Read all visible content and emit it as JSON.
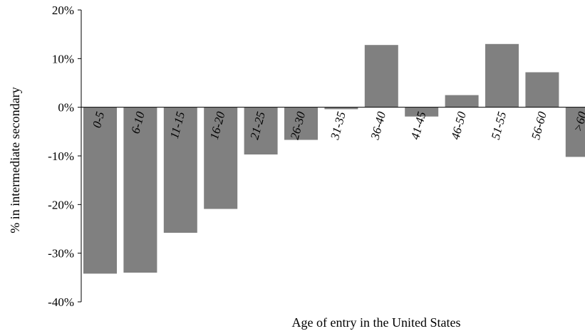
{
  "chart_data": {
    "type": "bar",
    "xlabel": "Age of entry in the United States",
    "ylabel": "% in intermediate secondary",
    "ylim": [
      -40,
      20
    ],
    "yticks": [
      {
        "value": 20,
        "label": "20%"
      },
      {
        "value": 10,
        "label": "10%"
      },
      {
        "value": 0,
        "label": "0%"
      },
      {
        "value": -10,
        "label": "-10%"
      },
      {
        "value": -20,
        "label": "-20%"
      },
      {
        "value": -30,
        "label": "-30%"
      },
      {
        "value": -40,
        "label": "-40%"
      }
    ],
    "categories": [
      "0-5",
      "6-10",
      "11-15",
      "16-20",
      "21-25",
      "26-30",
      "31-35",
      "36-40",
      "41-45",
      "46-50",
      "51-55",
      "56-60",
      ">60"
    ],
    "values": [
      -34.2,
      -34.0,
      -25.8,
      -20.9,
      -9.7,
      -6.7,
      -0.4,
      12.8,
      -1.9,
      2.5,
      13.0,
      7.2,
      -10.2
    ],
    "grid": false,
    "bar_color": "#808080"
  }
}
